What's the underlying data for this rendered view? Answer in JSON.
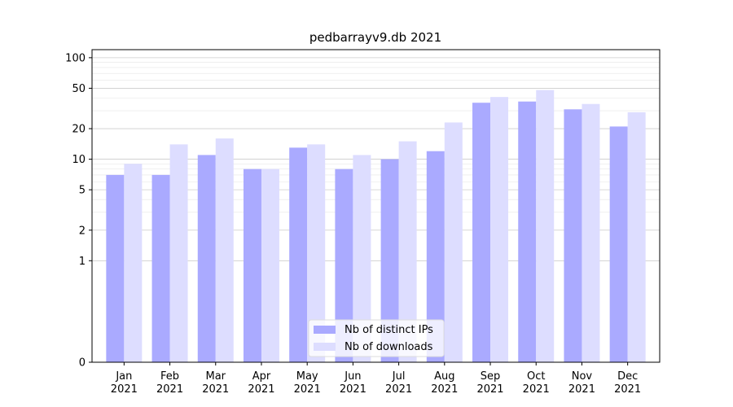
{
  "chart_data": {
    "type": "bar",
    "title": "pedbarrayv9.db 2021",
    "xlabel": "",
    "ylabel": "",
    "yscale": "symlog",
    "ylim": [
      0,
      120
    ],
    "yticks": [
      0,
      1,
      2,
      5,
      10,
      20,
      50,
      100
    ],
    "grid": true,
    "legend_position": "bottom-center",
    "categories": [
      "Jan\n2021",
      "Feb\n2021",
      "Mar\n2021",
      "Apr\n2021",
      "May\n2021",
      "Jun\n2021",
      "Jul\n2021",
      "Aug\n2021",
      "Sep\n2021",
      "Oct\n2021",
      "Nov\n2021",
      "Dec\n2021"
    ],
    "series": [
      {
        "name": "Nb of distinct IPs",
        "color": "#aaaaff",
        "values": [
          7,
          7,
          11,
          8,
          13,
          8,
          10,
          12,
          36,
          37,
          31,
          21
        ]
      },
      {
        "name": "Nb of downloads",
        "color": "#ddddff",
        "values": [
          9,
          14,
          16,
          8,
          14,
          11,
          15,
          23,
          41,
          48,
          35,
          29
        ]
      }
    ]
  }
}
